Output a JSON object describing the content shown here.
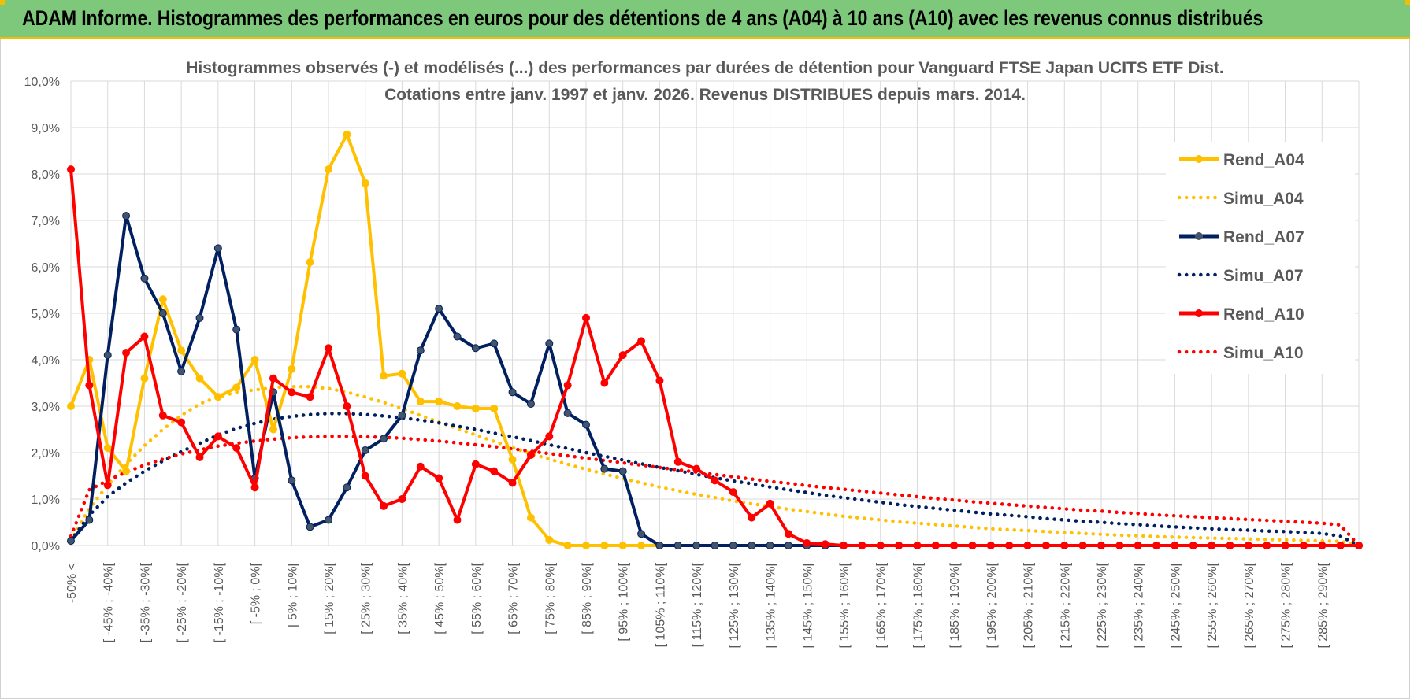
{
  "banner": {
    "title": "ADAM Informe. Histogrammes des performances en euros pour des détentions de 4 ans (A04) à 10 ans (A10) avec les revenus connus distribués"
  },
  "colors": {
    "a04": "#FFC000",
    "a07": "#002060",
    "a10": "#FF0000",
    "banner": "#7DC87B",
    "grid": "#D9D9D9"
  },
  "chart_data": {
    "type": "line",
    "title": "Histogrammes observés (-) et modélisés (...) des performances par durées de détention pour Vanguard FTSE Japan UCITS ETF Dist.",
    "subtitle": "Cotations entre janv. 1997 et janv. 2026. Revenus DISTRIBUES depuis mars. 2014.",
    "ylim": [
      0,
      10
    ],
    "ytick_labels": [
      "0,0%",
      "1,0%",
      "2,0%",
      "3,0%",
      "4,0%",
      "5,0%",
      "6,0%",
      "7,0%",
      "8,0%",
      "9,0%",
      "10,0%"
    ],
    "x_tick_labels": [
      "-50% <",
      "[ -45% ; -40%[",
      "[ -35% ; -30%[",
      "[ -25% ; -20%[",
      "[ -15% ; -10%[",
      "[ -5% ; 0%[",
      "[ 5% ; 10%[",
      "[ 15% ; 20%[",
      "[ 25% ; 30%[",
      "[ 35% ; 40%[",
      "[ 45% ; 50%[",
      "[ 55% ; 60%[",
      "[ 65% ; 70%[",
      "[ 75% ; 80%[",
      "[ 85% ; 90%[",
      "[ 95% ; 100%[",
      "[ 105% ; 110%[",
      "[ 115% ; 120%[",
      "[ 125% ; 130%[",
      "[ 135% ; 140%[",
      "[ 145% ; 150%[",
      "[ 155% ; 160%[",
      "[ 165% ; 170%[",
      "[ 175% ; 180%[",
      "[ 185% ; 190%[",
      "[ 195% ; 200%[",
      "[ 205% ; 210%[",
      "[ 215% ; 220%[",
      "[ 225% ; 230%[",
      "[ 235% ; 240%[",
      "[ 245% ; 250%[",
      "[ 255% ; 260%[",
      "[ 265% ; 270%[",
      "[ 275% ; 280%[",
      "[ 285% ; 290%["
    ],
    "n_points": 71,
    "legend_position": "right",
    "series": [
      {
        "name": "Rend_A04",
        "style": "solid",
        "color": "#FFC000",
        "values": [
          3.0,
          4.0,
          2.1,
          1.6,
          3.6,
          5.3,
          4.2,
          3.6,
          3.2,
          3.4,
          4.0,
          2.5,
          3.8,
          6.1,
          8.1,
          8.85,
          7.8,
          3.65,
          3.7,
          3.1,
          3.1,
          3.0,
          2.95,
          2.95,
          1.85,
          0.6,
          0.12,
          0,
          0,
          0,
          0,
          0,
          0,
          0,
          0,
          0,
          0,
          0,
          0,
          0,
          0,
          0,
          0,
          0,
          0,
          0,
          0,
          0,
          0,
          0,
          0,
          0,
          0,
          0,
          0,
          0,
          0,
          0,
          0,
          0,
          0,
          0,
          0,
          0,
          0,
          0,
          0,
          0,
          0,
          0,
          0
        ]
      },
      {
        "name": "Simu_A04",
        "style": "dotted",
        "color": "#FFC000",
        "values": [
          0.1,
          0.8,
          1.3,
          1.75,
          2.15,
          2.5,
          2.8,
          3.05,
          3.2,
          3.3,
          3.35,
          3.4,
          3.42,
          3.42,
          3.38,
          3.3,
          3.2,
          3.08,
          2.95,
          2.8,
          2.66,
          2.52,
          2.38,
          2.24,
          2.11,
          1.98,
          1.86,
          1.75,
          1.64,
          1.54,
          1.44,
          1.35,
          1.26,
          1.18,
          1.1,
          1.03,
          0.96,
          0.9,
          0.84,
          0.78,
          0.73,
          0.68,
          0.63,
          0.59,
          0.55,
          0.51,
          0.48,
          0.45,
          0.42,
          0.39,
          0.36,
          0.34,
          0.32,
          0.3,
          0.28,
          0.26,
          0.24,
          0.22,
          0.21,
          0.19,
          0.18,
          0.17,
          0.16,
          0.15,
          0.14,
          0.13,
          0.12,
          0.11,
          0.1,
          0.09,
          0.0
        ]
      },
      {
        "name": "Rend_A07",
        "style": "solid",
        "color": "#002060",
        "values": [
          0.1,
          0.55,
          4.1,
          7.1,
          5.75,
          5.0,
          3.75,
          4.9,
          6.4,
          4.65,
          1.45,
          3.3,
          1.4,
          0.4,
          0.55,
          1.25,
          2.05,
          2.3,
          2.8,
          4.2,
          5.1,
          4.5,
          4.25,
          4.35,
          3.3,
          3.05,
          4.35,
          2.85,
          2.6,
          1.65,
          1.6,
          0.25,
          0,
          0,
          0,
          0,
          0,
          0,
          0,
          0,
          0,
          0,
          0,
          0,
          0,
          0,
          0,
          0,
          0,
          0,
          0,
          0,
          0,
          0,
          0,
          0,
          0,
          0,
          0,
          0,
          0,
          0,
          0,
          0,
          0,
          0,
          0,
          0,
          0,
          0,
          0
        ]
      },
      {
        "name": "Simu_A07",
        "style": "dotted",
        "color": "#002060",
        "values": [
          0.1,
          0.65,
          1.05,
          1.35,
          1.6,
          1.82,
          2.02,
          2.2,
          2.38,
          2.52,
          2.63,
          2.72,
          2.78,
          2.82,
          2.84,
          2.84,
          2.82,
          2.79,
          2.75,
          2.7,
          2.64,
          2.57,
          2.5,
          2.42,
          2.34,
          2.26,
          2.17,
          2.09,
          2.0,
          1.92,
          1.84,
          1.76,
          1.68,
          1.61,
          1.53,
          1.46,
          1.39,
          1.33,
          1.26,
          1.2,
          1.14,
          1.08,
          1.03,
          0.98,
          0.93,
          0.88,
          0.84,
          0.8,
          0.76,
          0.72,
          0.68,
          0.65,
          0.62,
          0.58,
          0.55,
          0.52,
          0.5,
          0.47,
          0.45,
          0.42,
          0.4,
          0.38,
          0.36,
          0.34,
          0.33,
          0.31,
          0.3,
          0.28,
          0.26,
          0.2,
          0.0
        ]
      },
      {
        "name": "Rend_A10",
        "style": "solid",
        "color": "#FF0000",
        "values": [
          8.1,
          3.45,
          1.3,
          4.15,
          4.5,
          2.8,
          2.65,
          1.9,
          2.35,
          2.1,
          1.25,
          3.6,
          3.3,
          3.2,
          4.25,
          3.0,
          1.5,
          0.85,
          1.0,
          1.7,
          1.45,
          0.55,
          1.75,
          1.6,
          1.35,
          1.95,
          2.35,
          3.45,
          4.9,
          3.5,
          4.1,
          4.4,
          3.55,
          1.8,
          1.65,
          1.4,
          1.15,
          0.6,
          0.9,
          0.25,
          0.05,
          0.03,
          0,
          0,
          0,
          0,
          0,
          0,
          0,
          0,
          0,
          0,
          0,
          0,
          0,
          0,
          0,
          0,
          0,
          0,
          0,
          0,
          0,
          0,
          0,
          0,
          0,
          0,
          0,
          0,
          0
        ]
      },
      {
        "name": "Simu_A10",
        "style": "dotted",
        "color": "#FF0000",
        "values": [
          0.2,
          1.2,
          1.4,
          1.58,
          1.73,
          1.86,
          1.97,
          2.06,
          2.14,
          2.2,
          2.25,
          2.29,
          2.32,
          2.34,
          2.35,
          2.35,
          2.34,
          2.33,
          2.31,
          2.28,
          2.25,
          2.21,
          2.17,
          2.13,
          2.08,
          2.03,
          1.98,
          1.93,
          1.88,
          1.83,
          1.78,
          1.73,
          1.68,
          1.63,
          1.58,
          1.53,
          1.48,
          1.43,
          1.38,
          1.34,
          1.29,
          1.25,
          1.21,
          1.17,
          1.13,
          1.09,
          1.05,
          1.01,
          0.98,
          0.94,
          0.91,
          0.88,
          0.85,
          0.82,
          0.79,
          0.76,
          0.74,
          0.71,
          0.69,
          0.66,
          0.64,
          0.62,
          0.6,
          0.58,
          0.56,
          0.54,
          0.52,
          0.5,
          0.48,
          0.44,
          0.0
        ]
      }
    ]
  }
}
